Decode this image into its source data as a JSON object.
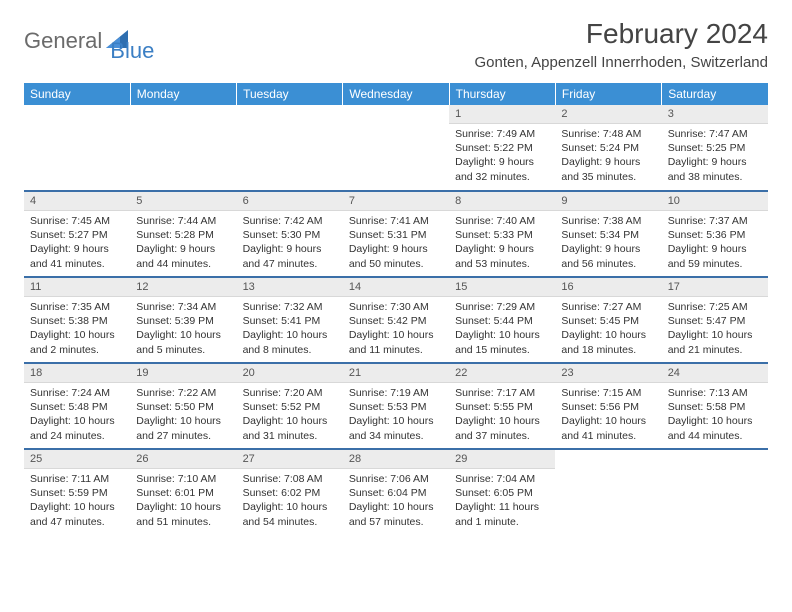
{
  "logo": {
    "text1": "General",
    "text2": "Blue"
  },
  "title": "February 2024",
  "location": "Gonten, Appenzell Innerrhoden, Switzerland",
  "colors": {
    "header_bg": "#3b8fd4",
    "header_text": "#ffffff",
    "date_bg": "#ececec",
    "row_border": "#3b6fa8",
    "logo_gray": "#6b6b6b",
    "logo_blue": "#3b7fc4",
    "body_text": "#333333"
  },
  "day_headers": [
    "Sunday",
    "Monday",
    "Tuesday",
    "Wednesday",
    "Thursday",
    "Friday",
    "Saturday"
  ],
  "weeks": [
    [
      {
        "empty": true
      },
      {
        "empty": true
      },
      {
        "empty": true
      },
      {
        "empty": true
      },
      {
        "n": "1",
        "sunrise": "7:49 AM",
        "sunset": "5:22 PM",
        "daylight": "9 hours and 32 minutes."
      },
      {
        "n": "2",
        "sunrise": "7:48 AM",
        "sunset": "5:24 PM",
        "daylight": "9 hours and 35 minutes."
      },
      {
        "n": "3",
        "sunrise": "7:47 AM",
        "sunset": "5:25 PM",
        "daylight": "9 hours and 38 minutes."
      }
    ],
    [
      {
        "n": "4",
        "sunrise": "7:45 AM",
        "sunset": "5:27 PM",
        "daylight": "9 hours and 41 minutes."
      },
      {
        "n": "5",
        "sunrise": "7:44 AM",
        "sunset": "5:28 PM",
        "daylight": "9 hours and 44 minutes."
      },
      {
        "n": "6",
        "sunrise": "7:42 AM",
        "sunset": "5:30 PM",
        "daylight": "9 hours and 47 minutes."
      },
      {
        "n": "7",
        "sunrise": "7:41 AM",
        "sunset": "5:31 PM",
        "daylight": "9 hours and 50 minutes."
      },
      {
        "n": "8",
        "sunrise": "7:40 AM",
        "sunset": "5:33 PM",
        "daylight": "9 hours and 53 minutes."
      },
      {
        "n": "9",
        "sunrise": "7:38 AM",
        "sunset": "5:34 PM",
        "daylight": "9 hours and 56 minutes."
      },
      {
        "n": "10",
        "sunrise": "7:37 AM",
        "sunset": "5:36 PM",
        "daylight": "9 hours and 59 minutes."
      }
    ],
    [
      {
        "n": "11",
        "sunrise": "7:35 AM",
        "sunset": "5:38 PM",
        "daylight": "10 hours and 2 minutes."
      },
      {
        "n": "12",
        "sunrise": "7:34 AM",
        "sunset": "5:39 PM",
        "daylight": "10 hours and 5 minutes."
      },
      {
        "n": "13",
        "sunrise": "7:32 AM",
        "sunset": "5:41 PM",
        "daylight": "10 hours and 8 minutes."
      },
      {
        "n": "14",
        "sunrise": "7:30 AM",
        "sunset": "5:42 PM",
        "daylight": "10 hours and 11 minutes."
      },
      {
        "n": "15",
        "sunrise": "7:29 AM",
        "sunset": "5:44 PM",
        "daylight": "10 hours and 15 minutes."
      },
      {
        "n": "16",
        "sunrise": "7:27 AM",
        "sunset": "5:45 PM",
        "daylight": "10 hours and 18 minutes."
      },
      {
        "n": "17",
        "sunrise": "7:25 AM",
        "sunset": "5:47 PM",
        "daylight": "10 hours and 21 minutes."
      }
    ],
    [
      {
        "n": "18",
        "sunrise": "7:24 AM",
        "sunset": "5:48 PM",
        "daylight": "10 hours and 24 minutes."
      },
      {
        "n": "19",
        "sunrise": "7:22 AM",
        "sunset": "5:50 PM",
        "daylight": "10 hours and 27 minutes."
      },
      {
        "n": "20",
        "sunrise": "7:20 AM",
        "sunset": "5:52 PM",
        "daylight": "10 hours and 31 minutes."
      },
      {
        "n": "21",
        "sunrise": "7:19 AM",
        "sunset": "5:53 PM",
        "daylight": "10 hours and 34 minutes."
      },
      {
        "n": "22",
        "sunrise": "7:17 AM",
        "sunset": "5:55 PM",
        "daylight": "10 hours and 37 minutes."
      },
      {
        "n": "23",
        "sunrise": "7:15 AM",
        "sunset": "5:56 PM",
        "daylight": "10 hours and 41 minutes."
      },
      {
        "n": "24",
        "sunrise": "7:13 AM",
        "sunset": "5:58 PM",
        "daylight": "10 hours and 44 minutes."
      }
    ],
    [
      {
        "n": "25",
        "sunrise": "7:11 AM",
        "sunset": "5:59 PM",
        "daylight": "10 hours and 47 minutes."
      },
      {
        "n": "26",
        "sunrise": "7:10 AM",
        "sunset": "6:01 PM",
        "daylight": "10 hours and 51 minutes."
      },
      {
        "n": "27",
        "sunrise": "7:08 AM",
        "sunset": "6:02 PM",
        "daylight": "10 hours and 54 minutes."
      },
      {
        "n": "28",
        "sunrise": "7:06 AM",
        "sunset": "6:04 PM",
        "daylight": "10 hours and 57 minutes."
      },
      {
        "n": "29",
        "sunrise": "7:04 AM",
        "sunset": "6:05 PM",
        "daylight": "11 hours and 1 minute."
      },
      {
        "empty": true
      },
      {
        "empty": true
      }
    ]
  ],
  "labels": {
    "sunrise": "Sunrise:",
    "sunset": "Sunset:",
    "daylight": "Daylight:"
  }
}
